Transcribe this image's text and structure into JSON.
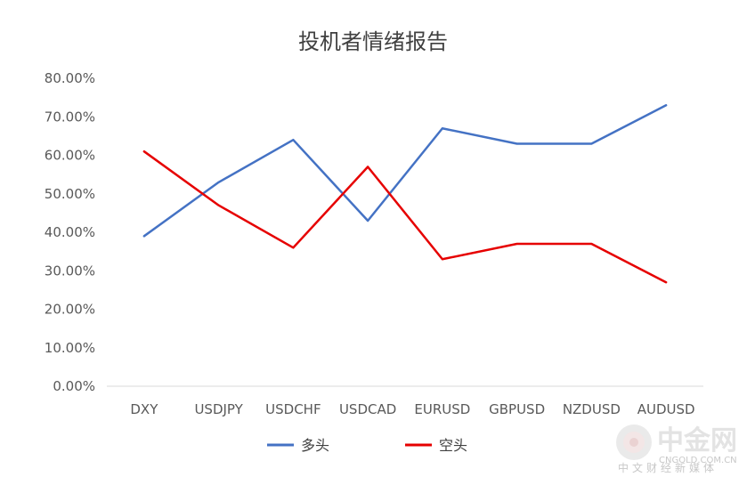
{
  "chart_data": {
    "type": "line",
    "title": "投机者情绪报告",
    "categories": [
      "DXY",
      "USDJPY",
      "USDCHF",
      "USDCAD",
      "EURUSD",
      "GBPUSD",
      "NZDUSD",
      "AUDUSD"
    ],
    "series": [
      {
        "name": "多头",
        "color": "#4472C4",
        "values": [
          39,
          53,
          64,
          43,
          67,
          63,
          63,
          73
        ]
      },
      {
        "name": "空头",
        "color": "#E60000",
        "values": [
          61,
          47,
          36,
          57,
          33,
          37,
          37,
          27
        ]
      }
    ],
    "ylim": [
      0,
      80
    ],
    "ytick_step": 10,
    "yticks": [
      "0.00%",
      "10.00%",
      "20.00%",
      "30.00%",
      "40.00%",
      "50.00%",
      "60.00%",
      "70.00%",
      "80.00%"
    ],
    "xlabel": "",
    "ylabel": "",
    "grid": false,
    "legend_position": "bottom"
  },
  "watermark": {
    "brand": "中金网",
    "domain": "CNGOLD.COM.CN",
    "tagline": "中文财经新媒体"
  }
}
